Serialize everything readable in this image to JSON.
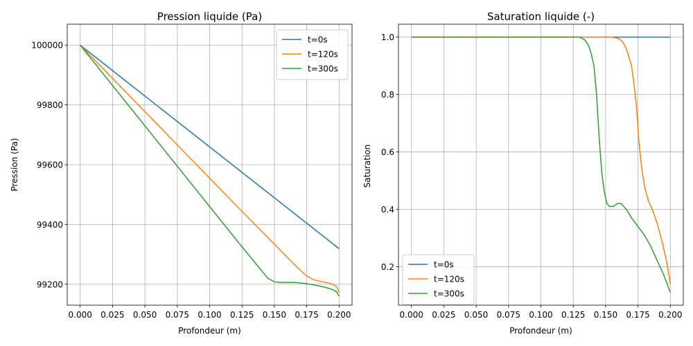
{
  "chart_data": [
    {
      "type": "line",
      "title": "Pression liquide (Pa)",
      "xlabel": "Profondeur (m)",
      "ylabel": "Pression (Pa)",
      "xlim": [
        -0.01,
        0.21
      ],
      "ylim": [
        99130,
        100070
      ],
      "xticks": [
        0.0,
        0.025,
        0.05,
        0.075,
        0.1,
        0.125,
        0.15,
        0.175,
        0.2
      ],
      "xtick_labels": [
        "0.000",
        "0.025",
        "0.050",
        "0.075",
        "0.100",
        "0.125",
        "0.150",
        "0.175",
        "0.200"
      ],
      "yticks": [
        99200,
        99400,
        99600,
        99800,
        100000
      ],
      "ytick_labels": [
        "99200",
        "99400",
        "99600",
        "99800",
        "100000"
      ],
      "grid": true,
      "legend_position": "upper right",
      "series": [
        {
          "name": "t=0s",
          "color": "#1f77b4",
          "x": [
            0.0,
            0.2
          ],
          "y": [
            100000,
            99319
          ]
        },
        {
          "name": "t=120s",
          "color": "#ff7f0e",
          "x": [
            0.0,
            0.02,
            0.04,
            0.06,
            0.08,
            0.1,
            0.12,
            0.14,
            0.16,
            0.165,
            0.17,
            0.175,
            0.18,
            0.185,
            0.19,
            0.195,
            0.198,
            0.2
          ],
          "y": [
            100000,
            99911,
            99822,
            99733,
            99644,
            99555,
            99466,
            99378,
            99290,
            99268,
            99247,
            99228,
            99216,
            99210,
            99206,
            99200,
            99193,
            99172
          ]
        },
        {
          "name": "t=300s",
          "color": "#2ca02c",
          "x": [
            0.0,
            0.02,
            0.04,
            0.06,
            0.08,
            0.1,
            0.12,
            0.14,
            0.145,
            0.15,
            0.155,
            0.16,
            0.165,
            0.17,
            0.175,
            0.18,
            0.185,
            0.19,
            0.195,
            0.198,
            0.2
          ],
          "y": [
            100000,
            99892,
            99784,
            99676,
            99568,
            99460,
            99352,
            99246,
            99220,
            99208,
            99206,
            99206,
            99206,
            99204,
            99202,
            99198,
            99194,
            99189,
            99182,
            99175,
            99160
          ]
        }
      ]
    },
    {
      "type": "line",
      "title": "Saturation liquide (-)",
      "xlabel": "Profondeur (m)",
      "ylabel": "Saturation",
      "xlim": [
        -0.01,
        0.21
      ],
      "ylim": [
        0.066,
        1.045
      ],
      "xticks": [
        0.0,
        0.025,
        0.05,
        0.075,
        0.1,
        0.125,
        0.15,
        0.175,
        0.2
      ],
      "xtick_labels": [
        "0.000",
        "0.025",
        "0.050",
        "0.075",
        "0.100",
        "0.125",
        "0.150",
        "0.175",
        "0.200"
      ],
      "yticks": [
        0.2,
        0.4,
        0.6,
        0.8,
        1.0
      ],
      "ytick_labels": [
        "0.2",
        "0.4",
        "0.6",
        "0.8",
        "1.0"
      ],
      "grid": true,
      "legend_position": "lower left",
      "series": [
        {
          "name": "t=0s",
          "color": "#1f77b4",
          "x": [
            0.0,
            0.2
          ],
          "y": [
            1.0,
            1.0
          ]
        },
        {
          "name": "t=120s",
          "color": "#ff7f0e",
          "x": [
            0.0,
            0.155,
            0.16,
            0.163,
            0.166,
            0.168,
            0.17,
            0.172,
            0.174,
            0.176,
            0.178,
            0.18,
            0.183,
            0.186,
            0.19,
            0.194,
            0.197,
            0.2
          ],
          "y": [
            1.0,
            1.0,
            0.995,
            0.985,
            0.96,
            0.93,
            0.9,
            0.83,
            0.75,
            0.62,
            0.54,
            0.48,
            0.43,
            0.4,
            0.35,
            0.28,
            0.22,
            0.14
          ]
        },
        {
          "name": "t=300s",
          "color": "#2ca02c",
          "x": [
            0.0,
            0.13,
            0.134,
            0.137,
            0.139,
            0.141,
            0.143,
            0.145,
            0.147,
            0.149,
            0.151,
            0.153,
            0.156,
            0.159,
            0.162,
            0.166,
            0.17,
            0.175,
            0.18,
            0.185,
            0.19,
            0.195,
            0.2
          ],
          "y": [
            1.0,
            1.0,
            0.99,
            0.97,
            0.94,
            0.9,
            0.8,
            0.65,
            0.53,
            0.46,
            0.42,
            0.41,
            0.41,
            0.42,
            0.42,
            0.4,
            0.37,
            0.34,
            0.31,
            0.27,
            0.22,
            0.17,
            0.11
          ]
        }
      ]
    }
  ]
}
